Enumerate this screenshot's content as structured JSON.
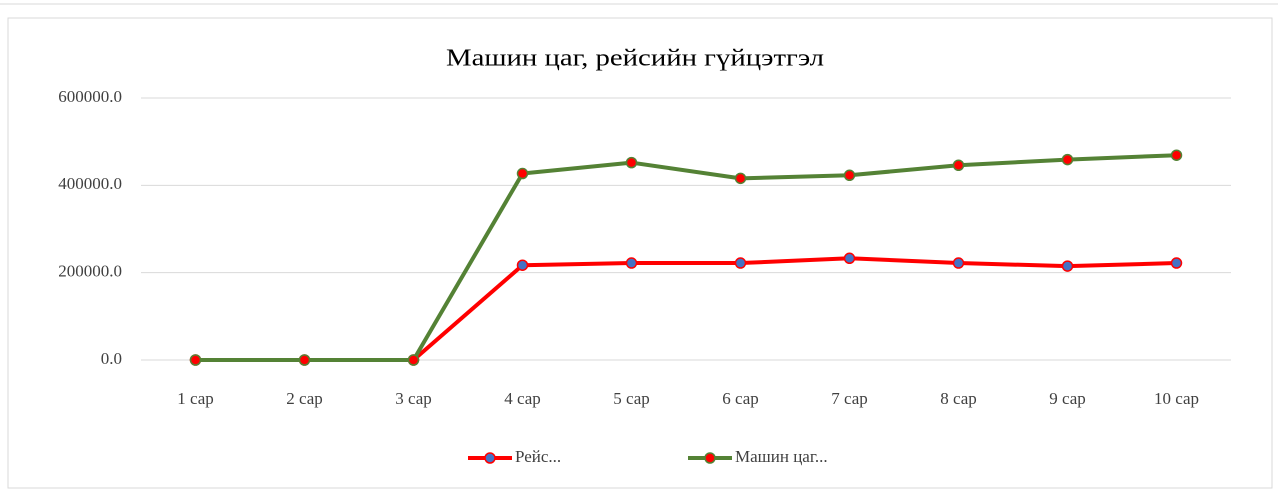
{
  "chart_data": {
    "type": "line",
    "title": "Машин цаг, рейсийн гүйцэтгэл",
    "categories": [
      "1 сар",
      "2 сар",
      "3 сар",
      "4 сар",
      "5 сар",
      "6 сар",
      "7 сар",
      "8 сар",
      "9 сар",
      "10 сар"
    ],
    "series": [
      {
        "name": "Рейс...",
        "color": "#ff0000",
        "marker_color": "#4472c4",
        "values": [
          0,
          0,
          0,
          217000,
          222000,
          222000,
          233000,
          222000,
          215000,
          222000
        ]
      },
      {
        "name": "Машин цаг...",
        "color": "#548235",
        "marker_color": "#ff0000",
        "values": [
          0,
          0,
          0,
          427000,
          452000,
          416000,
          423000,
          446000,
          459000,
          469000
        ]
      }
    ],
    "ylim": [
      0,
      600000
    ],
    "yticks": [
      {
        "value": 0,
        "label": "0.0"
      },
      {
        "value": 200000,
        "label": "200000.0"
      },
      {
        "value": 400000,
        "label": "400000.0"
      },
      {
        "value": 600000,
        "label": "600000.0"
      }
    ],
    "grid": true,
    "legend": "bottom"
  }
}
